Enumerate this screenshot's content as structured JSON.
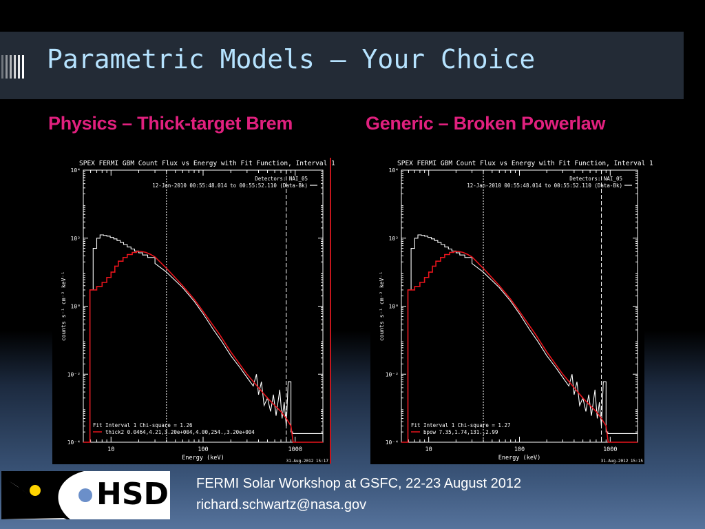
{
  "slide": {
    "title": "Parametric Models – Your Choice",
    "left_heading": "Physics – Thick-target Brem",
    "right_heading": "Generic – Broken Powerlaw",
    "footer_line1": "FERMI Solar Workshop at GSFC, 22-23 August 2012",
    "footer_line2": "richard.schwartz@nasa.gov",
    "logo_text": "HSD",
    "colors": {
      "heading": "#e0207e",
      "title": "#b6e3ff",
      "model_line": "#e8141c",
      "data_line": "#ffffff"
    }
  },
  "chart_data": [
    {
      "type": "line",
      "title": "SPEX FERMI GBM Count Flux vs Energy with Fit Function, Interval 1",
      "xlabel": "Energy (keV)",
      "ylabel": "counts s⁻¹ cm⁻² keV⁻¹",
      "x_scale": "log",
      "y_scale": "log",
      "xlim": [
        5,
        2000
      ],
      "ylim": [
        0.0001,
        10000
      ],
      "x_ticks": [
        {
          "v": 10,
          "label": "10"
        },
        {
          "v": 100,
          "label": "100"
        },
        {
          "v": 1000,
          "label": "1000"
        }
      ],
      "y_ticks": [
        {
          "v": 0.0001,
          "label": "10⁻⁴"
        },
        {
          "v": 0.01,
          "label": "10⁻²"
        },
        {
          "v": 1,
          "label": "10⁰"
        },
        {
          "v": 100,
          "label": "10²"
        },
        {
          "v": 10000,
          "label": "10⁴"
        }
      ],
      "detector_label": "Detectors: NAI_05",
      "time_label": "12-Jan-2010 00:55:48.014 to 00:55:52.110 (Data-Bk)",
      "fit_label": "Fit Interval 1   Chi-square = 1.26",
      "model_label": "thick2 0.0464,4.21,3.20e+004,4.00,254.,3.20e+004",
      "date_label": "31-Aug-2012 15:17",
      "vlines": [
        {
          "x": 40,
          "style": "dotted"
        },
        {
          "x": 800,
          "style": "dashed"
        }
      ],
      "series": [
        {
          "role": "data",
          "color": "#ffffff",
          "points": [
            [
              5,
              0.0001
            ],
            [
              5.9,
              0.0001
            ],
            [
              5.9,
              3
            ],
            [
              6.4,
              3
            ],
            [
              6.4,
              50
            ],
            [
              7,
              50
            ],
            [
              7,
              100
            ],
            [
              7.6,
              100
            ],
            [
              7.6,
              125
            ],
            [
              8.3,
              125
            ],
            [
              8.3,
              120
            ],
            [
              9,
              120
            ],
            [
              9,
              115
            ],
            [
              9.8,
              115
            ],
            [
              9.8,
              105
            ],
            [
              10.7,
              105
            ],
            [
              10.7,
              95
            ],
            [
              11.6,
              95
            ],
            [
              11.6,
              85
            ],
            [
              12.6,
              85
            ],
            [
              12.6,
              75
            ],
            [
              13.7,
              75
            ],
            [
              13.7,
              65
            ],
            [
              15,
              65
            ],
            [
              15,
              55
            ],
            [
              16.5,
              55
            ],
            [
              16.5,
              48
            ],
            [
              18,
              48
            ],
            [
              18,
              42
            ],
            [
              20,
              42
            ],
            [
              20,
              37
            ],
            [
              22,
              37
            ],
            [
              22,
              32
            ],
            [
              25,
              32
            ],
            [
              25,
              27
            ],
            [
              30,
              27
            ],
            [
              30,
              18
            ],
            [
              40,
              10
            ],
            [
              60,
              3.5
            ],
            [
              80,
              1.4
            ],
            [
              100,
              0.6
            ],
            [
              130,
              0.2
            ],
            [
              160,
              0.09
            ],
            [
              200,
              0.035
            ],
            [
              250,
              0.016
            ],
            [
              300,
              0.008
            ],
            [
              350,
              0.0045
            ],
            [
              380,
              0.01
            ],
            [
              400,
              0.0025
            ],
            [
              430,
              0.006
            ],
            [
              460,
              0.0012
            ],
            [
              500,
              0.002
            ],
            [
              540,
              0.0008
            ],
            [
              580,
              0.0025
            ],
            [
              620,
              0.0006
            ],
            [
              680,
              0.0035
            ],
            [
              720,
              0.0005
            ],
            [
              760,
              0.0015
            ],
            [
              800,
              0.0003
            ],
            [
              840,
              0.006
            ],
            [
              900,
              0.006
            ],
            [
              900,
              0.0002
            ],
            [
              940,
              0.0002
            ],
            [
              940,
              0.00018
            ],
            [
              2000,
              0.00018
            ]
          ]
        },
        {
          "role": "model",
          "color": "#e8141c",
          "points": [
            [
              5,
              0.0001
            ],
            [
              5.9,
              0.0001
            ],
            [
              5.9,
              3
            ],
            [
              7,
              3
            ],
            [
              7,
              3.8
            ],
            [
              8,
              3.8
            ],
            [
              8,
              5
            ],
            [
              9,
              5
            ],
            [
              9,
              7
            ],
            [
              10,
              7
            ],
            [
              10,
              10
            ],
            [
              11,
              10
            ],
            [
              11,
              15
            ],
            [
              12,
              15
            ],
            [
              12,
              21
            ],
            [
              13.5,
              21
            ],
            [
              13.5,
              27
            ],
            [
              15,
              27
            ],
            [
              15,
              33
            ],
            [
              17,
              33
            ],
            [
              17,
              38
            ],
            [
              19,
              38
            ],
            [
              19,
              41
            ],
            [
              21,
              41
            ],
            [
              21,
              41
            ],
            [
              24,
              38
            ],
            [
              27,
              33
            ],
            [
              30,
              28
            ],
            [
              40,
              13
            ],
            [
              60,
              4
            ],
            [
              80,
              1.6
            ],
            [
              100,
              0.7
            ],
            [
              150,
              0.15
            ],
            [
              200,
              0.045
            ],
            [
              300,
              0.01
            ],
            [
              400,
              0.004
            ],
            [
              500,
              0.002
            ],
            [
              600,
              0.0012
            ],
            [
              700,
              0.0008
            ],
            [
              800,
              0.0005
            ],
            [
              900,
              0.0003
            ],
            [
              950,
              0.0001
            ],
            [
              2000,
              0.0001
            ]
          ]
        }
      ]
    },
    {
      "type": "line",
      "title": "SPEX FERMI GBM Count Flux vs Energy with Fit Function, Interval 1",
      "xlabel": "Energy (keV)",
      "ylabel": "counts s⁻¹ cm⁻² keV⁻¹",
      "x_scale": "log",
      "y_scale": "log",
      "xlim": [
        5,
        2000
      ],
      "ylim": [
        0.0001,
        10000
      ],
      "x_ticks": [
        {
          "v": 10,
          "label": "10"
        },
        {
          "v": 100,
          "label": "100"
        },
        {
          "v": 1000,
          "label": "1000"
        }
      ],
      "y_ticks": [
        {
          "v": 0.0001,
          "label": "10⁻⁴"
        },
        {
          "v": 0.01,
          "label": "10⁻²"
        },
        {
          "v": 1,
          "label": "10⁰"
        },
        {
          "v": 100,
          "label": "10²"
        },
        {
          "v": 10000,
          "label": "10⁴"
        }
      ],
      "detector_label": "Detectors: NAI_05",
      "time_label": "12-Jan-2010 00:55:48.014 to 00:55:52.110 (Data-Bk)",
      "fit_label": "Fit Interval 1   Chi-square = 1.27",
      "model_label": "bpow 7.35,1.74,131.,2.99",
      "date_label": "31-Aug-2012 15:15",
      "vlines": [
        {
          "x": 40,
          "style": "dotted"
        },
        {
          "x": 800,
          "style": "dashed"
        }
      ],
      "series": [
        {
          "role": "data",
          "color": "#ffffff",
          "points": [
            [
              5,
              0.0001
            ],
            [
              5.9,
              0.0001
            ],
            [
              5.9,
              3
            ],
            [
              6.4,
              3
            ],
            [
              6.4,
              50
            ],
            [
              7,
              50
            ],
            [
              7,
              100
            ],
            [
              7.6,
              100
            ],
            [
              7.6,
              125
            ],
            [
              8.3,
              125
            ],
            [
              8.3,
              120
            ],
            [
              9,
              120
            ],
            [
              9,
              115
            ],
            [
              9.8,
              115
            ],
            [
              9.8,
              105
            ],
            [
              10.7,
              105
            ],
            [
              10.7,
              95
            ],
            [
              11.6,
              95
            ],
            [
              11.6,
              85
            ],
            [
              12.6,
              85
            ],
            [
              12.6,
              75
            ],
            [
              13.7,
              75
            ],
            [
              13.7,
              65
            ],
            [
              15,
              65
            ],
            [
              15,
              55
            ],
            [
              16.5,
              55
            ],
            [
              16.5,
              48
            ],
            [
              18,
              48
            ],
            [
              18,
              42
            ],
            [
              20,
              42
            ],
            [
              20,
              37
            ],
            [
              22,
              37
            ],
            [
              22,
              32
            ],
            [
              25,
              32
            ],
            [
              25,
              27
            ],
            [
              30,
              27
            ],
            [
              30,
              18
            ],
            [
              40,
              10
            ],
            [
              60,
              3.5
            ],
            [
              80,
              1.4
            ],
            [
              100,
              0.6
            ],
            [
              130,
              0.2
            ],
            [
              160,
              0.09
            ],
            [
              200,
              0.035
            ],
            [
              250,
              0.016
            ],
            [
              300,
              0.008
            ],
            [
              350,
              0.0045
            ],
            [
              380,
              0.01
            ],
            [
              400,
              0.0025
            ],
            [
              430,
              0.006
            ],
            [
              460,
              0.0012
            ],
            [
              500,
              0.002
            ],
            [
              540,
              0.0008
            ],
            [
              580,
              0.0025
            ],
            [
              620,
              0.0006
            ],
            [
              680,
              0.0035
            ],
            [
              720,
              0.0005
            ],
            [
              760,
              0.0015
            ],
            [
              800,
              0.0003
            ],
            [
              840,
              0.006
            ],
            [
              900,
              0.006
            ],
            [
              900,
              0.0002
            ],
            [
              940,
              0.0002
            ],
            [
              940,
              0.00018
            ],
            [
              2000,
              0.00018
            ]
          ]
        },
        {
          "role": "model",
          "color": "#e8141c",
          "points": [
            [
              5,
              0.0001
            ],
            [
              5.9,
              0.0001
            ],
            [
              5.9,
              3
            ],
            [
              7,
              3
            ],
            [
              7,
              3.8
            ],
            [
              8,
              3.8
            ],
            [
              8,
              5
            ],
            [
              9,
              5
            ],
            [
              9,
              7
            ],
            [
              10,
              7
            ],
            [
              10,
              10
            ],
            [
              11,
              10
            ],
            [
              11,
              15
            ],
            [
              12,
              15
            ],
            [
              12,
              21
            ],
            [
              13.5,
              21
            ],
            [
              13.5,
              27
            ],
            [
              15,
              27
            ],
            [
              15,
              33
            ],
            [
              17,
              33
            ],
            [
              17,
              38
            ],
            [
              19,
              38
            ],
            [
              19,
              41
            ],
            [
              21,
              41
            ],
            [
              21,
              41
            ],
            [
              24,
              38
            ],
            [
              27,
              33
            ],
            [
              30,
              28
            ],
            [
              40,
              13
            ],
            [
              60,
              4
            ],
            [
              80,
              1.6
            ],
            [
              100,
              0.7
            ],
            [
              150,
              0.15
            ],
            [
              200,
              0.045
            ],
            [
              300,
              0.01
            ],
            [
              400,
              0.004
            ],
            [
              500,
              0.002
            ],
            [
              600,
              0.0012
            ],
            [
              700,
              0.0008
            ],
            [
              800,
              0.0005
            ],
            [
              900,
              0.0003
            ],
            [
              950,
              0.0001
            ],
            [
              2000,
              0.0001
            ]
          ]
        }
      ]
    }
  ]
}
